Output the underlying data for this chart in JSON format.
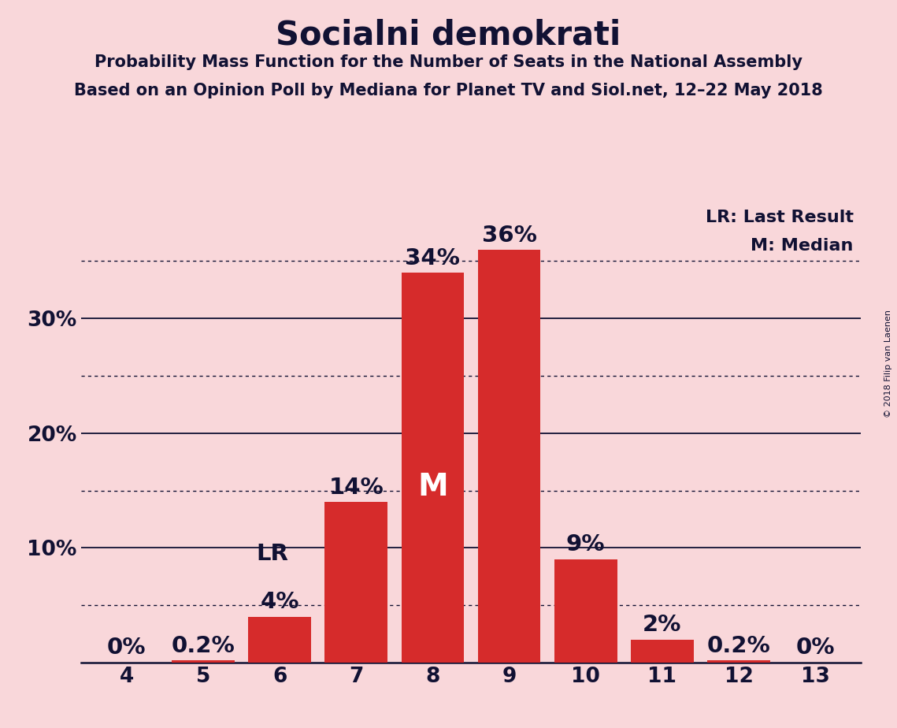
{
  "title": "Socialni demokrati",
  "subtitle1": "Probability Mass Function for the Number of Seats in the National Assembly",
  "subtitle2": "Based on an Opinion Poll by Mediana for Planet TV and Siol.net, 12–22 May 2018",
  "watermark": "© 2018 Filip van Laenen",
  "categories": [
    4,
    5,
    6,
    7,
    8,
    9,
    10,
    11,
    12,
    13
  ],
  "values": [
    0.0,
    0.2,
    4.0,
    14.0,
    34.0,
    36.0,
    9.0,
    2.0,
    0.2,
    0.0
  ],
  "labels": [
    "0%",
    "0.2%",
    "4%",
    "14%",
    "34%",
    "36%",
    "9%",
    "2%",
    "0.2%",
    "0%"
  ],
  "bar_color": "#d62b2b",
  "background_color": "#f9d7da",
  "lr_seat": 6,
  "median_seat": 8,
  "ylim": [
    0,
    40
  ],
  "solid_grid_lines": [
    10,
    20,
    30
  ],
  "dotted_grid_lines": [
    5,
    15,
    25,
    35
  ],
  "lr_label": "LR",
  "median_label": "M",
  "legend_lr": "LR: Last Result",
  "legend_m": "M: Median",
  "title_fontsize": 30,
  "subtitle_fontsize": 15,
  "tick_fontsize": 19,
  "annotation_fontsize": 21,
  "legend_fontsize": 16,
  "watermark_fontsize": 8
}
